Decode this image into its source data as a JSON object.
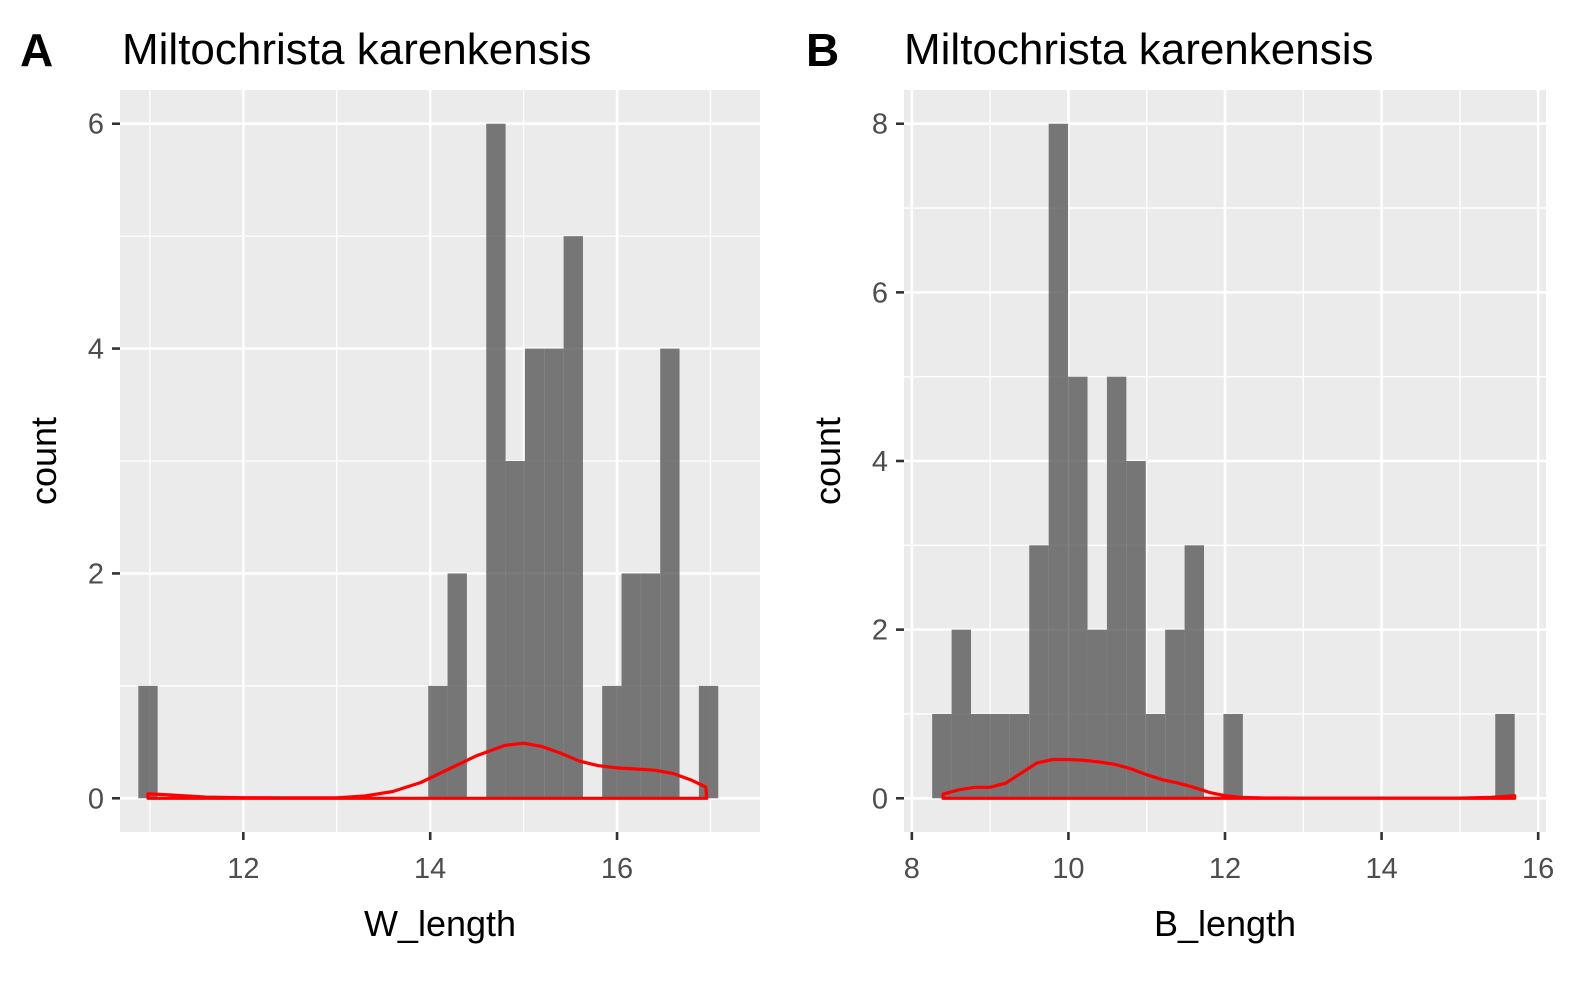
{
  "chart_data": [
    {
      "panel_label": "A",
      "type": "histogram",
      "title": "Miltochrista karenkensis",
      "xlabel": "W_length",
      "ylabel": "count",
      "xlim": [
        10.68,
        17.53
      ],
      "ylim": [
        -0.3,
        6.3
      ],
      "xticks": [
        12,
        14,
        16
      ],
      "yticks": [
        0,
        2,
        4,
        6
      ],
      "bin_width": 0.207,
      "bins": [
        {
          "x0": 10.876,
          "x1": 11.083,
          "count": 1
        },
        {
          "x0": 13.979,
          "x1": 14.186,
          "count": 1
        },
        {
          "x0": 14.186,
          "x1": 14.393,
          "count": 2
        },
        {
          "x0": 14.6,
          "x1": 14.807,
          "count": 6
        },
        {
          "x0": 14.807,
          "x1": 15.014,
          "count": 3
        },
        {
          "x0": 15.014,
          "x1": 15.221,
          "count": 4
        },
        {
          "x0": 15.221,
          "x1": 15.428,
          "count": 4
        },
        {
          "x0": 15.428,
          "x1": 15.635,
          "count": 5
        },
        {
          "x0": 15.841,
          "x1": 16.048,
          "count": 1
        },
        {
          "x0": 16.048,
          "x1": 16.255,
          "count": 2
        },
        {
          "x0": 16.255,
          "x1": 16.462,
          "count": 2
        },
        {
          "x0": 16.462,
          "x1": 16.669,
          "count": 4
        },
        {
          "x0": 16.876,
          "x1": 17.083,
          "count": 1
        }
      ],
      "density": {
        "x": [
          10.98,
          11.2,
          11.6,
          12.0,
          12.5,
          13.0,
          13.3,
          13.6,
          13.9,
          14.2,
          14.5,
          14.8,
          15.0,
          15.2,
          15.4,
          15.6,
          15.8,
          16.0,
          16.2,
          16.4,
          16.6,
          16.8,
          16.95,
          16.96
        ],
        "y": [
          0.04,
          0.03,
          0.01,
          0.005,
          0.003,
          0.004,
          0.02,
          0.06,
          0.14,
          0.26,
          0.38,
          0.47,
          0.49,
          0.46,
          0.4,
          0.33,
          0.29,
          0.27,
          0.26,
          0.25,
          0.22,
          0.16,
          0.1,
          0.0
        ]
      },
      "density_color": "#ff0000",
      "bar_color": "#595959",
      "grid": true
    },
    {
      "panel_label": "B",
      "type": "histogram",
      "title": "Miltochrista karenkensis",
      "xlabel": "B_length",
      "ylabel": "count",
      "xlim": [
        7.9,
        16.1
      ],
      "ylim": [
        -0.4,
        8.4
      ],
      "xticks": [
        8,
        10,
        12,
        14,
        16
      ],
      "yticks": [
        0,
        2,
        4,
        6,
        8
      ],
      "bin_width": 0.248,
      "bins": [
        {
          "x0": 8.26,
          "x1": 8.508,
          "count": 1
        },
        {
          "x0": 8.508,
          "x1": 8.756,
          "count": 2
        },
        {
          "x0": 8.756,
          "x1": 9.004,
          "count": 1
        },
        {
          "x0": 9.004,
          "x1": 9.252,
          "count": 1
        },
        {
          "x0": 9.252,
          "x1": 9.5,
          "count": 1
        },
        {
          "x0": 9.5,
          "x1": 9.748,
          "count": 3
        },
        {
          "x0": 9.748,
          "x1": 9.996,
          "count": 8
        },
        {
          "x0": 9.996,
          "x1": 10.244,
          "count": 5
        },
        {
          "x0": 10.244,
          "x1": 10.492,
          "count": 2
        },
        {
          "x0": 10.492,
          "x1": 10.74,
          "count": 5
        },
        {
          "x0": 10.74,
          "x1": 10.988,
          "count": 4
        },
        {
          "x0": 10.988,
          "x1": 11.236,
          "count": 1
        },
        {
          "x0": 11.236,
          "x1": 11.484,
          "count": 2
        },
        {
          "x0": 11.484,
          "x1": 11.732,
          "count": 3
        },
        {
          "x0": 11.98,
          "x1": 12.228,
          "count": 1
        },
        {
          "x0": 15.452,
          "x1": 15.7,
          "count": 1
        }
      ],
      "density": {
        "x": [
          8.4,
          8.6,
          8.8,
          9.0,
          9.2,
          9.4,
          9.6,
          9.8,
          10.0,
          10.2,
          10.4,
          10.6,
          10.8,
          11.0,
          11.2,
          11.4,
          11.6,
          11.8,
          12.0,
          12.2,
          12.5,
          13.0,
          14.0,
          15.0,
          15.4,
          15.7
        ],
        "y": [
          0.05,
          0.1,
          0.13,
          0.13,
          0.18,
          0.3,
          0.42,
          0.46,
          0.46,
          0.45,
          0.43,
          0.4,
          0.35,
          0.28,
          0.22,
          0.18,
          0.13,
          0.07,
          0.03,
          0.01,
          0.003,
          0.002,
          0.002,
          0.002,
          0.01,
          0.03
        ]
      },
      "density_color": "#ff0000",
      "bar_color": "#595959",
      "grid": true
    }
  ]
}
